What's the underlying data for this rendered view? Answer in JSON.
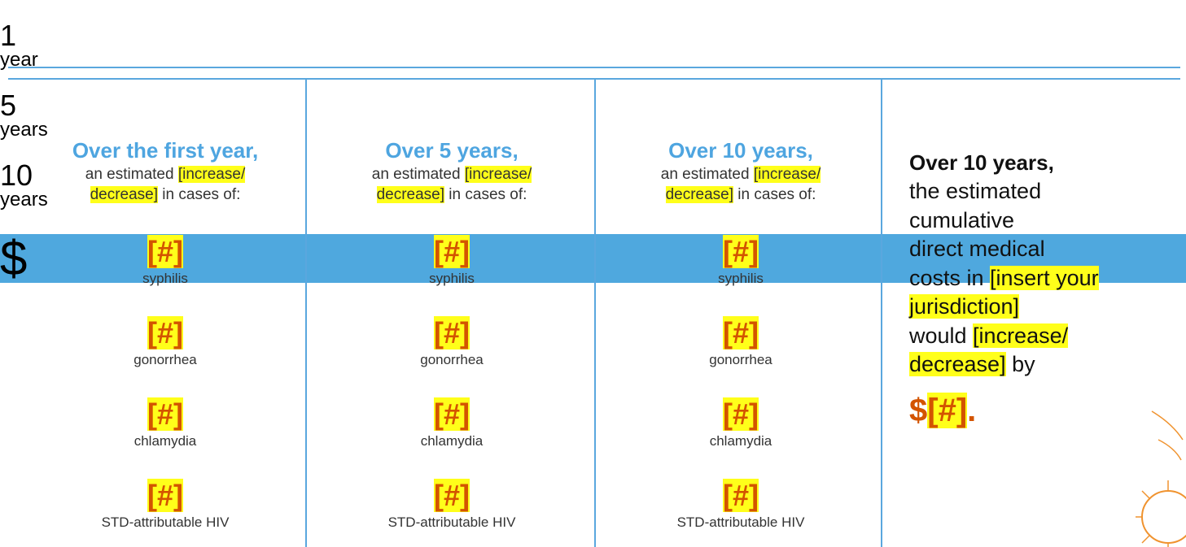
{
  "columns": [
    {
      "badge_number": "1",
      "badge_unit": "year",
      "heading": "Over the first year,",
      "intro": [
        [
          "an estimated ",
          {
            "text": "[increase/",
            "highlight": true
          }
        ],
        [
          {
            "text": "decrease]",
            "highlight": true
          },
          " in cases of:"
        ]
      ],
      "items": [
        {
          "value": "[#]",
          "label": "syphilis"
        },
        {
          "value": "[#]",
          "label": "gonorrhea"
        },
        {
          "value": "[#]",
          "label": "chlamydia"
        },
        {
          "value": "[#]",
          "label": "STD-attributable HIV"
        }
      ]
    },
    {
      "badge_number": "5",
      "badge_unit": "years",
      "heading": "Over 5 years,",
      "intro": [
        [
          "an estimated ",
          {
            "text": "[increase/",
            "highlight": true
          }
        ],
        [
          {
            "text": "decrease]",
            "highlight": true
          },
          " in cases of:"
        ]
      ],
      "items": [
        {
          "value": "[#]",
          "label": "syphilis"
        },
        {
          "value": "[#]",
          "label": "gonorrhea"
        },
        {
          "value": "[#]",
          "label": "chlamydia"
        },
        {
          "value": "[#]",
          "label": "STD-attributable HIV"
        }
      ]
    },
    {
      "badge_number": "10",
      "badge_unit": "years",
      "heading": "Over 10 years,",
      "intro": [
        [
          "an estimated ",
          {
            "text": "[increase/",
            "highlight": true
          }
        ],
        [
          {
            "text": "decrease]",
            "highlight": true
          },
          " in cases of:"
        ]
      ],
      "items": [
        {
          "value": "[#]",
          "label": "syphilis"
        },
        {
          "value": "[#]",
          "label": "gonorrhea"
        },
        {
          "value": "[#]",
          "label": "chlamydia"
        },
        {
          "value": "[#]",
          "label": "STD-attributable HIV"
        }
      ]
    }
  ],
  "cost": {
    "badge_symbol": "$",
    "heading": "Over 10 years,",
    "lines": [
      [
        "the estimated"
      ],
      [
        "cumulative"
      ],
      [
        "direct medical"
      ],
      [
        "costs in ",
        {
          "text": "[insert your",
          "highlight": true
        }
      ],
      [
        {
          "text": "jurisdiction]",
          "highlight": true
        }
      ],
      [
        "would ",
        {
          "text": "[increase/",
          "highlight": true
        }
      ],
      [
        {
          "text": "decrease]",
          "highlight": true
        },
        " by"
      ]
    ],
    "amount": [
      "$",
      {
        "text": "[#]",
        "highlight": true
      },
      "."
    ]
  }
}
